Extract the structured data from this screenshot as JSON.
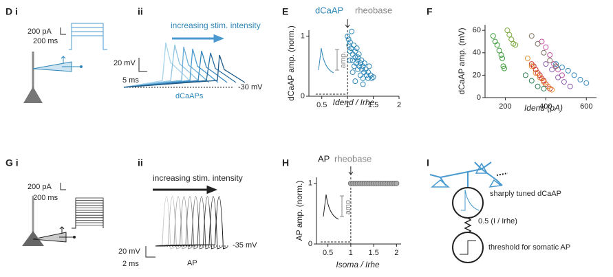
{
  "panels": {
    "D": "D i",
    "Dii": "ii",
    "E": "E",
    "F": "F",
    "G": "G i",
    "Gii": "ii",
    "H": "H",
    "I": "I"
  },
  "annotations": {
    "d_current": "200 pA",
    "d_time": "200 ms",
    "d_stim": "increasing stim. intensity",
    "d_volt": "20 mV",
    "d_ms": "5 ms",
    "d_base": "-30 mV",
    "d_spikes": "dCaAPs",
    "g_current": "200 pA",
    "g_time": "200 ms",
    "g_stim": "increasing stim. intensity",
    "g_volt": "20 mV",
    "g_ms": "2 ms",
    "g_base": "-35 mV",
    "g_spikes": "AP",
    "i_top": "sharply tuned dCaAP",
    "i_mid": "0.5 (I / Irhe)",
    "i_bottom": "threshold for somatic AP"
  },
  "chart_data": [
    {
      "type": "scatter",
      "title_parts": [
        "dCaAP",
        "rheobase"
      ],
      "inset_label": "amp.",
      "y_label": "dCaAP amp. (norm.)",
      "x_label": "Idend / Irhe",
      "xlim": [
        0.25,
        2.0
      ],
      "xticks": [
        0.5,
        1,
        1.5,
        2
      ],
      "ylim": [
        0,
        1.1
      ],
      "yticks": [
        0,
        1
      ],
      "series": [
        {
          "color": "#2e86b8",
          "x": [
            1.0,
            1.02,
            1.03,
            1.05,
            1.05,
            1.07,
            1.08,
            1.1,
            1.1,
            1.12,
            1.13,
            1.15,
            1.15,
            1.17,
            1.18,
            1.2,
            1.2,
            1.22,
            1.23,
            1.25,
            1.25,
            1.27,
            1.28,
            1.3,
            1.3,
            1.32,
            1.33,
            1.35,
            1.37,
            1.4,
            1.4,
            1.42,
            1.45,
            1.47,
            1.5,
            1.1,
            1.15,
            1.2,
            1.3,
            1.05
          ],
          "values": [
            1.0,
            0.95,
            0.85,
            0.9,
            0.75,
            0.8,
            1.08,
            0.7,
            0.6,
            0.85,
            0.5,
            0.75,
            0.65,
            0.55,
            0.8,
            0.6,
            0.45,
            0.7,
            0.5,
            0.55,
            0.35,
            0.6,
            0.45,
            0.5,
            0.3,
            0.4,
            0.55,
            0.45,
            0.35,
            0.4,
            0.3,
            0.5,
            0.35,
            0.3,
            0.32,
            0.4,
            0.25,
            0.65,
            0.2,
            0.6
          ]
        }
      ]
    },
    {
      "type": "scatter",
      "y_label": "dCaAP amp. (mV)",
      "x_label": "Idend (pA)",
      "xlim": [
        100,
        650
      ],
      "xticks": [
        200,
        400,
        600
      ],
      "ylim": [
        0,
        65
      ],
      "yticks": [
        0,
        20,
        40,
        60
      ],
      "series": [
        {
          "color": "#3a9a3a",
          "x": [
            140,
            150,
            160,
            170,
            180,
            185,
            190,
            195
          ],
          "values": [
            55,
            50,
            47,
            42,
            38,
            35,
            28,
            26
          ]
        },
        {
          "color": "#7aa83a",
          "x": [
            210,
            220,
            230,
            240,
            250
          ],
          "values": [
            60,
            56,
            52,
            48,
            47
          ]
        },
        {
          "color": "#d0302a",
          "x": [
            330,
            340,
            350,
            360,
            370,
            380,
            390,
            400,
            410,
            420
          ],
          "values": [
            30,
            28,
            25,
            22,
            20,
            17,
            15,
            12,
            10,
            8
          ]
        },
        {
          "color": "#e89030",
          "x": [
            310,
            330,
            350,
            370,
            390,
            410,
            430
          ],
          "values": [
            35,
            28,
            22,
            18,
            14,
            10,
            7
          ]
        },
        {
          "color": "#c04fa0",
          "x": [
            380,
            400,
            420,
            440,
            460,
            480
          ],
          "values": [
            50,
            45,
            38,
            30,
            25,
            20
          ]
        },
        {
          "color": "#8a5ab0",
          "x": [
            400,
            430,
            460,
            490,
            520
          ],
          "values": [
            30,
            25,
            18,
            14,
            10
          ]
        },
        {
          "color": "#3a8ac0",
          "x": [
            450,
            480,
            510,
            540,
            570,
            600
          ],
          "values": [
            30,
            27,
            24,
            20,
            16,
            13
          ]
        },
        {
          "color": "#807060",
          "x": [
            330,
            360,
            390,
            420,
            450
          ],
          "values": [
            55,
            48,
            40,
            33,
            28
          ]
        },
        {
          "color": "#2a7a50",
          "x": [
            300,
            330,
            360,
            390
          ],
          "values": [
            20,
            15,
            10,
            8
          ]
        }
      ]
    },
    {
      "type": "scatter",
      "title_parts": [
        "AP",
        "rheobase"
      ],
      "inset_label": "amp.",
      "y_label": "AP amp. (norm.)",
      "x_label": "Isoma / Irhe",
      "xlim": [
        0.25,
        2.1
      ],
      "xticks": [
        0.5,
        1,
        1.5,
        2
      ],
      "ylim": [
        0,
        1.1
      ],
      "yticks": [
        0,
        1
      ],
      "series": [
        {
          "color": "#777777",
          "x": [
            1.0,
            1.05,
            1.1,
            1.15,
            1.2,
            1.25,
            1.3,
            1.35,
            1.4,
            1.45,
            1.5,
            1.55,
            1.6,
            1.65,
            1.7,
            1.75,
            1.8,
            1.85,
            1.9,
            1.95,
            2.0
          ],
          "values": [
            1,
            1,
            1,
            1,
            1,
            1,
            1,
            1,
            1,
            1,
            1,
            1,
            1,
            1,
            1,
            1,
            1,
            1,
            1,
            1,
            1
          ]
        }
      ]
    }
  ]
}
